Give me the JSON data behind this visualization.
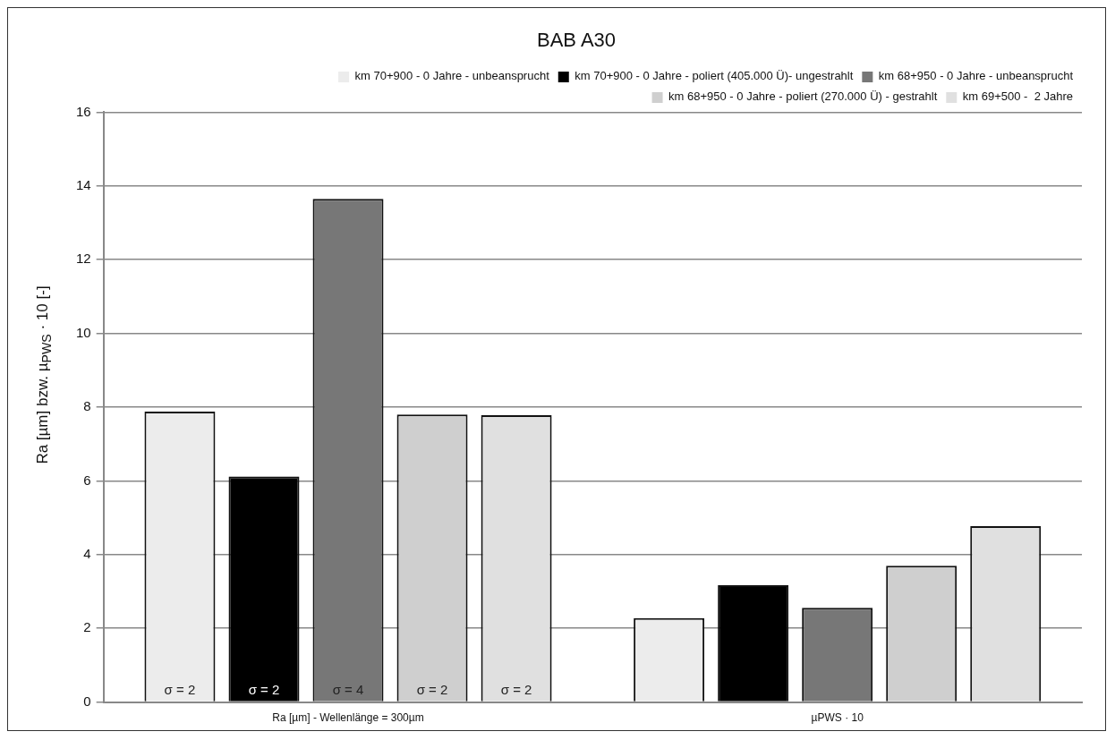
{
  "chart_data": {
    "type": "bar",
    "title": "BAB A30",
    "ylabel": "Ra [µm] bzw. µ$_{PWS}$ · 10 [-]",
    "categories": [
      "Ra [µm] - Wellenlänge = 300µm",
      "µPWS · 10"
    ],
    "series": [
      {
        "name": "km 70+900 - 0 Jahre - unbeansprucht",
        "color": "#ececec",
        "values": [
          7.88,
          2.28
        ]
      },
      {
        "name": "km 70+900 - 0 Jahre - poliert (405.000 Ü)- ungestrahlt",
        "color": "#000000",
        "values": [
          6.12,
          3.17
        ]
      },
      {
        "name": "km 68+950 - 0 Jahre - unbeansprucht",
        "color": "#777777",
        "values": [
          13.65,
          2.56
        ]
      },
      {
        "name": "km 68+950 - 0 Jahre - poliert (270.000 Ü) - gestrahlt",
        "color": "#cfcfcf",
        "values": [
          7.8,
          3.7
        ]
      },
      {
        "name": "km 69+500 -  2 Jahre",
        "color": "#e0e0e0",
        "values": [
          7.78,
          4.77
        ]
      }
    ],
    "annotations": [
      "σ = 2",
      "σ = 2",
      "σ = 4",
      "σ = 2",
      "σ = 2"
    ],
    "ylim": [
      0,
      16
    ],
    "yticks": [
      0,
      2,
      4,
      6,
      8,
      10,
      12,
      14,
      16
    ],
    "grid": "y",
    "legend": "top right"
  }
}
